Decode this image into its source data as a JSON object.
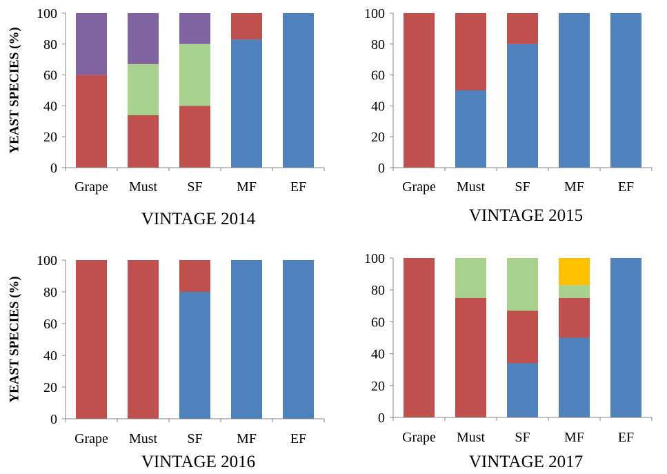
{
  "colors": {
    "blue": "#4F81BD",
    "red": "#C0504D",
    "green": "#A9D18E",
    "purple": "#8064A2",
    "orange": "#FFC000",
    "axis": "#868686"
  },
  "chart_data": [
    {
      "type": "bar",
      "stacked": true,
      "title": "VINTAGE 2014",
      "ylabel": "YEAST SPECIES (%)",
      "xlabel": "",
      "ylim": [
        0,
        100
      ],
      "yticks": [
        0,
        20,
        40,
        60,
        80,
        100
      ],
      "grid": false,
      "categories": [
        "Grape",
        "Must",
        "SF",
        "MF",
        "EF"
      ],
      "series": [
        {
          "color": "#4F81BD",
          "values": [
            0,
            0,
            0,
            83,
            100
          ]
        },
        {
          "color": "#C0504D",
          "values": [
            60,
            34,
            40,
            17,
            0
          ]
        },
        {
          "color": "#A9D18E",
          "values": [
            0,
            33,
            40,
            0,
            0
          ]
        },
        {
          "color": "#8064A2",
          "values": [
            40,
            33,
            20,
            0,
            0
          ]
        }
      ]
    },
    {
      "type": "bar",
      "stacked": true,
      "title": "VINTAGE 2015",
      "ylabel": "",
      "xlabel": "",
      "ylim": [
        0,
        100
      ],
      "yticks": [
        0,
        20,
        40,
        60,
        80,
        100
      ],
      "grid": false,
      "categories": [
        "Grape",
        "Must",
        "SF",
        "MF",
        "EF"
      ],
      "series": [
        {
          "color": "#4F81BD",
          "values": [
            0,
            50,
            80,
            100,
            100
          ]
        },
        {
          "color": "#C0504D",
          "values": [
            100,
            50,
            20,
            0,
            0
          ]
        }
      ]
    },
    {
      "type": "bar",
      "stacked": true,
      "title": "VINTAGE 2016",
      "ylabel": "YEAST SPECIES (%)",
      "xlabel": "",
      "ylim": [
        0,
        100
      ],
      "yticks": [
        0,
        20,
        40,
        60,
        80,
        100
      ],
      "grid": false,
      "categories": [
        "Grape",
        "Must",
        "SF",
        "MF",
        "EF"
      ],
      "series": [
        {
          "color": "#4F81BD",
          "values": [
            0,
            0,
            80,
            100,
            100
          ]
        },
        {
          "color": "#C0504D",
          "values": [
            100,
            100,
            20,
            0,
            0
          ]
        }
      ]
    },
    {
      "type": "bar",
      "stacked": true,
      "title": "VINTAGE 2017",
      "ylabel": "",
      "xlabel": "",
      "ylim": [
        0,
        100
      ],
      "yticks": [
        0,
        20,
        40,
        60,
        80,
        100
      ],
      "grid": false,
      "categories": [
        "Grape",
        "Must",
        "SF",
        "MF",
        "EF"
      ],
      "series": [
        {
          "color": "#4F81BD",
          "values": [
            0,
            0,
            34,
            50,
            100
          ]
        },
        {
          "color": "#C0504D",
          "values": [
            100,
            75,
            33,
            25,
            0
          ]
        },
        {
          "color": "#A9D18E",
          "values": [
            0,
            25,
            33,
            8,
            0
          ]
        },
        {
          "color": "#FFC000",
          "values": [
            0,
            0,
            0,
            17,
            0
          ]
        }
      ]
    }
  ]
}
